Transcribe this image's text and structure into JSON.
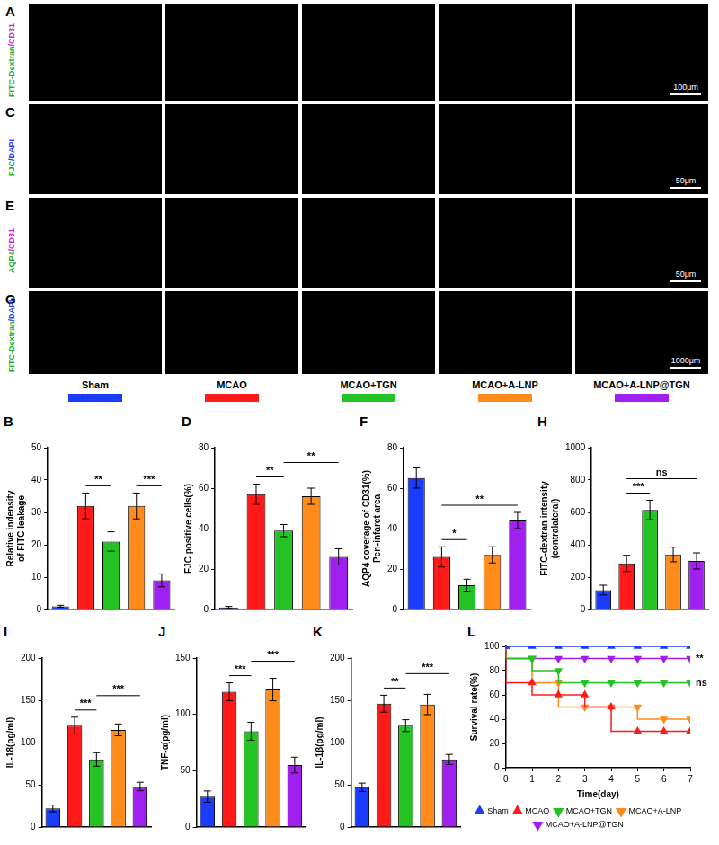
{
  "figure": {
    "image_rows": [
      {
        "letter": "A",
        "stain": [
          {
            "text": "FITC-Dextran",
            "color": "#1fae1f"
          },
          {
            "text": "/CD31",
            "color": "#d01fd0"
          }
        ],
        "scale_bar": "100μm"
      },
      {
        "letter": "C",
        "stain": [
          {
            "text": "FJC",
            "color": "#1fae1f"
          },
          {
            "text": "/DAPI",
            "color": "#2a3cff"
          }
        ],
        "scale_bar": "50μm"
      },
      {
        "letter": "E",
        "stain": [
          {
            "text": "AQP4",
            "color": "#1fae1f"
          },
          {
            "text": "/CD31",
            "color": "#d01fd0"
          }
        ],
        "scale_bar": "50μm"
      },
      {
        "letter": "G",
        "stain": [
          {
            "text": "FITC-Dextran",
            "color": "#1fae1f"
          },
          {
            "text": "/DAPI",
            "color": "#2a3cff"
          }
        ],
        "scale_bar": "1000μm"
      }
    ],
    "groups": [
      {
        "name": "Sham",
        "color": "#1a3cff"
      },
      {
        "name": "MCAO",
        "color": "#ff1a1a"
      },
      {
        "name": "MCAO+TGN",
        "color": "#22c322"
      },
      {
        "name": "MCAO+A-LNP",
        "color": "#ff8c1a"
      },
      {
        "name": "MCAO+A-LNP@TGN",
        "color": "#a020f0"
      }
    ]
  },
  "chart_data": [
    {
      "letter": "B",
      "type": "bar",
      "y_label": [
        "Relative indensity",
        "of FITC leakage"
      ],
      "categories": [
        "Sham",
        "MCAO",
        "MCAO+TGN",
        "MCAO+A-LNP",
        "MCAO+A-LNP@TGN"
      ],
      "colors": [
        "#1a3cff",
        "#ff1a1a",
        "#22c322",
        "#ff8c1a",
        "#a020f0"
      ],
      "values": [
        1,
        32,
        21,
        32,
        9
      ],
      "errors": [
        0.3,
        4,
        3,
        4,
        2
      ],
      "comparisons": [
        {
          "from": "MCAO",
          "to": "MCAO+TGN",
          "label": "**"
        },
        {
          "from": "MCAO+A-LNP",
          "to": "MCAO+A-LNP@TGN",
          "label": "***"
        }
      ],
      "ylim": [
        0,
        50
      ],
      "yticks": [
        0,
        10,
        20,
        30,
        40,
        50
      ],
      "grid": false,
      "tick_labels": "y"
    },
    {
      "letter": "D",
      "type": "bar",
      "y_label": "FJC positive cells(%)",
      "categories": [
        "Sham",
        "MCAO",
        "MCAO+TGN",
        "MCAO+A-LNP",
        "MCAO+A-LNP@TGN"
      ],
      "colors": [
        "#1a3cff",
        "#ff1a1a",
        "#22c322",
        "#ff8c1a",
        "#a020f0"
      ],
      "values": [
        1,
        57,
        39,
        56,
        26
      ],
      "errors": [
        0.5,
        5,
        3,
        4,
        4
      ],
      "comparisons": [
        {
          "from": "MCAO",
          "to": "MCAO+TGN",
          "label": "**"
        },
        {
          "from": "MCAO+TGN",
          "to": "MCAO+A-LNP@TGN",
          "label": "**"
        }
      ],
      "ylim": [
        0,
        80
      ],
      "yticks": [
        0,
        20,
        40,
        60,
        80
      ],
      "grid": false,
      "tick_labels": "y"
    },
    {
      "letter": "F",
      "type": "bar",
      "y_label": [
        "AQP4 coverage of CD31(%)",
        "Peri-infarct area"
      ],
      "categories": [
        "Sham",
        "MCAO",
        "MCAO+TGN",
        "MCAO+A-LNP",
        "MCAO+A-LNP@TGN"
      ],
      "colors": [
        "#1a3cff",
        "#ff1a1a",
        "#22c322",
        "#ff8c1a",
        "#a020f0"
      ],
      "values": [
        65,
        26,
        12,
        27,
        44
      ],
      "errors": [
        5,
        5,
        3,
        4,
        4
      ],
      "comparisons": [
        {
          "from": "MCAO",
          "to": "MCAO+TGN",
          "label": "*"
        },
        {
          "from": "MCAO",
          "to": "MCAO+A-LNP@TGN",
          "label": "**"
        }
      ],
      "ylim": [
        0,
        80
      ],
      "yticks": [
        0,
        20,
        40,
        60,
        80
      ],
      "grid": false,
      "tick_labels": "y"
    },
    {
      "letter": "H",
      "type": "bar",
      "y_label": [
        "FITC-dextran intensity",
        "(contralateral)"
      ],
      "categories": [
        "Sham",
        "MCAO",
        "MCAO+TGN",
        "MCAO+A-LNP",
        "MCAO+A-LNP@TGN"
      ],
      "colors": [
        "#1a3cff",
        "#ff1a1a",
        "#22c322",
        "#ff8c1a",
        "#a020f0"
      ],
      "values": [
        120,
        285,
        615,
        340,
        300
      ],
      "errors": [
        30,
        50,
        60,
        45,
        50
      ],
      "comparisons": [
        {
          "from": "MCAO",
          "to": "MCAO+TGN",
          "label": "***"
        },
        {
          "from": "MCAO",
          "to": "MCAO+A-LNP@TGN",
          "label": "ns"
        }
      ],
      "ylim": [
        0,
        1000
      ],
      "yticks": [
        0,
        200,
        400,
        600,
        800,
        1000
      ],
      "grid": false,
      "tick_labels": "y"
    },
    {
      "letter": "I",
      "type": "bar",
      "y_label": "IL-18(pg/ml)",
      "categories": [
        "Sham",
        "MCAO",
        "MCAO+TGN",
        "MCAO+A-LNP",
        "MCAO+A-LNP@TGN"
      ],
      "colors": [
        "#1a3cff",
        "#ff1a1a",
        "#22c322",
        "#ff8c1a",
        "#a020f0"
      ],
      "values": [
        22,
        120,
        80,
        115,
        48
      ],
      "errors": [
        4,
        10,
        8,
        7,
        5
      ],
      "comparisons": [
        {
          "from": "MCAO",
          "to": "MCAO+TGN",
          "label": "***"
        },
        {
          "from": "MCAO+TGN",
          "to": "MCAO+A-LNP@TGN",
          "label": "***"
        }
      ],
      "ylim": [
        0,
        200
      ],
      "yticks": [
        0,
        50,
        100,
        150,
        200
      ],
      "grid": false,
      "tick_labels": "y"
    },
    {
      "letter": "J",
      "type": "bar",
      "y_label": "TNF-α(pg/ml)",
      "categories": [
        "Sham",
        "MCAO",
        "MCAO+TGN",
        "MCAO+A-LNP",
        "MCAO+A-LNP@TGN"
      ],
      "colors": [
        "#1a3cff",
        "#ff1a1a",
        "#22c322",
        "#ff8c1a",
        "#a020f0"
      ],
      "values": [
        27,
        120,
        85,
        122,
        55
      ],
      "errors": [
        5,
        8,
        8,
        10,
        7
      ],
      "comparisons": [
        {
          "from": "MCAO",
          "to": "MCAO+TGN",
          "label": "***"
        },
        {
          "from": "MCAO+TGN",
          "to": "MCAO+A-LNP@TGN",
          "label": "***"
        }
      ],
      "ylim": [
        0,
        150
      ],
      "yticks": [
        0,
        50,
        100,
        150
      ],
      "grid": false,
      "tick_labels": "y"
    },
    {
      "letter": "K",
      "type": "bar",
      "y_label": "IL-1β(pg/ml)",
      "categories": [
        "Sham",
        "MCAO",
        "MCAO+TGN",
        "MCAO+A-LNP",
        "MCAO+A-LNP@TGN"
      ],
      "colors": [
        "#1a3cff",
        "#ff1a1a",
        "#22c322",
        "#ff8c1a",
        "#a020f0"
      ],
      "values": [
        47,
        146,
        120,
        145,
        80
      ],
      "errors": [
        5,
        10,
        7,
        12,
        6
      ],
      "comparisons": [
        {
          "from": "MCAO",
          "to": "MCAO+TGN",
          "label": "**"
        },
        {
          "from": "MCAO+TGN",
          "to": "MCAO+A-LNP@TGN",
          "label": "***"
        }
      ],
      "ylim": [
        0,
        200
      ],
      "yticks": [
        0,
        50,
        100,
        150,
        200
      ],
      "grid": false,
      "tick_labels": "y"
    },
    {
      "letter": "L",
      "type": "line",
      "x_label": "Time(day)",
      "y_label": "Survival rate(%)",
      "x": [
        0,
        1,
        2,
        3,
        4,
        5,
        6,
        7
      ],
      "series": [
        {
          "name": "Sham",
          "color": "#1a3cff",
          "marker": "triangle-up",
          "values": [
            100,
            100,
            100,
            100,
            100,
            100,
            100,
            100
          ]
        },
        {
          "name": "MCAO",
          "color": "#ff1a1a",
          "marker": "triangle-up",
          "values": [
            100,
            70,
            60,
            60,
            50,
            30,
            30,
            30
          ]
        },
        {
          "name": "MCAO+TGN",
          "color": "#22c322",
          "marker": "triangle-down",
          "values": [
            100,
            90,
            80,
            70,
            70,
            70,
            70,
            70
          ]
        },
        {
          "name": "MCAO+A-LNP",
          "color": "#ff8c1a",
          "marker": "triangle-down",
          "values": [
            100,
            90,
            70,
            50,
            50,
            50,
            40,
            40
          ]
        },
        {
          "name": "MCAO+A-LNP@TGN",
          "color": "#a020f0",
          "marker": "triangle-down",
          "values": [
            100,
            90,
            90,
            90,
            90,
            90,
            90,
            90
          ]
        }
      ],
      "annotations": [
        {
          "series": "MCAO+A-LNP@TGN",
          "label": "**"
        },
        {
          "series": "MCAO+TGN",
          "label": "ns"
        }
      ],
      "xlim": [
        0,
        7
      ],
      "xticks": [
        0,
        1,
        2,
        3,
        4,
        5,
        6,
        7
      ],
      "ylim": [
        0,
        100
      ],
      "yticks": [
        0,
        20,
        40,
        60,
        80,
        100
      ],
      "line_style": "step",
      "legend": "bottom",
      "grid": false
    }
  ]
}
